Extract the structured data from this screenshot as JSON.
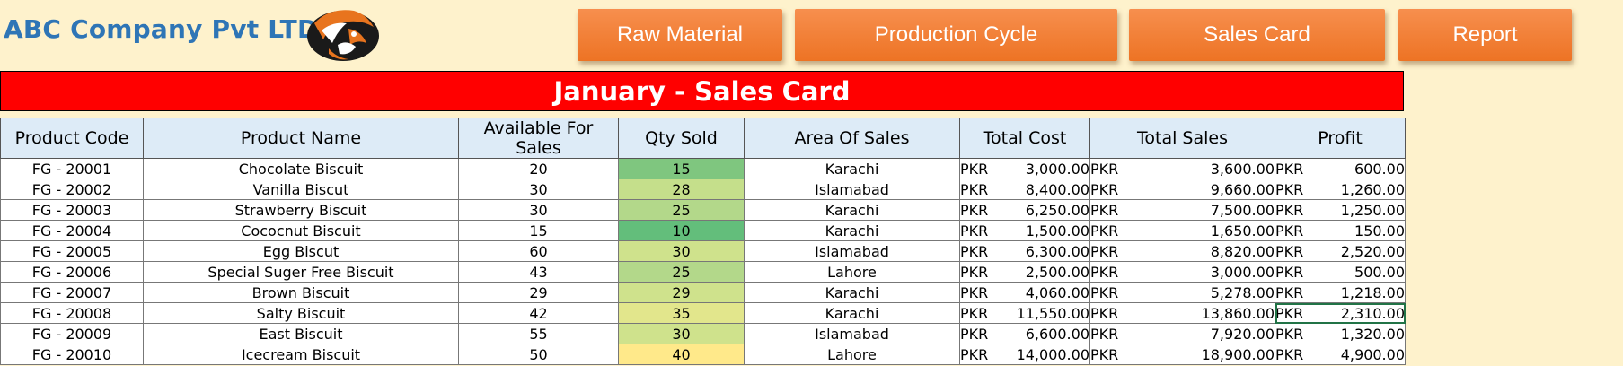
{
  "company": {
    "name": "ABC Company Pvt LTD"
  },
  "logo": {
    "icon": "tiger-head-icon"
  },
  "nav": [
    {
      "label": "Raw Material"
    },
    {
      "label": "Production Cycle"
    },
    {
      "label": "Sales Card"
    },
    {
      "label": "Report"
    }
  ],
  "sheet": {
    "title": "January - Sales Card",
    "columns": [
      "Product Code",
      "Product Name",
      "Available For Sales",
      "Qty Sold",
      "Area Of Sales",
      "Total Cost",
      "Total Sales",
      "Profit"
    ],
    "currency": "PKR",
    "rows": [
      {
        "code": "FG - 20001",
        "name": "Chocolate Biscuit",
        "available": "20",
        "qty": "15",
        "qty_color": "#7fc67f",
        "area": "Karachi",
        "cost": "3,000.00",
        "sales": "3,600.00",
        "profit": "600.00"
      },
      {
        "code": "FG - 20002",
        "name": "Vanilla Biscut",
        "available": "30",
        "qty": "28",
        "qty_color": "#c5df8b",
        "area": "Islamabad",
        "cost": "8,400.00",
        "sales": "9,660.00",
        "profit": "1,260.00"
      },
      {
        "code": "FG - 20003",
        "name": "Strawberry Biscuit",
        "available": "30",
        "qty": "25",
        "qty_color": "#b3d88a",
        "area": "Karachi",
        "cost": "6,250.00",
        "sales": "7,500.00",
        "profit": "1,250.00"
      },
      {
        "code": "FG - 20004",
        "name": "Cococnut Biscuit",
        "available": "15",
        "qty": "10",
        "qty_color": "#63be7b",
        "area": "Karachi",
        "cost": "1,500.00",
        "sales": "1,650.00",
        "profit": "150.00"
      },
      {
        "code": "FG - 20005",
        "name": "Egg Biscut",
        "available": "60",
        "qty": "30",
        "qty_color": "#cfe28c",
        "area": "Islamabad",
        "cost": "6,300.00",
        "sales": "8,820.00",
        "profit": "2,520.00"
      },
      {
        "code": "FG - 20006",
        "name": "Special Suger Free Biscuit",
        "available": "43",
        "qty": "25",
        "qty_color": "#b3d88a",
        "area": "Lahore",
        "cost": "2,500.00",
        "sales": "3,000.00",
        "profit": "500.00"
      },
      {
        "code": "FG - 20007",
        "name": "Brown Biscuit",
        "available": "29",
        "qty": "29",
        "qty_color": "#cfe28c",
        "area": "Karachi",
        "cost": "4,060.00",
        "sales": "5,278.00",
        "profit": "1,218.00"
      },
      {
        "code": "FG - 20008",
        "name": "Salty Biscuit",
        "available": "42",
        "qty": "35",
        "qty_color": "#e2e68c",
        "area": "Karachi",
        "cost": "11,550.00",
        "sales": "13,860.00",
        "profit": "2,310.00"
      },
      {
        "code": "FG - 20009",
        "name": "East Biscuit",
        "available": "55",
        "qty": "30",
        "qty_color": "#cfe28c",
        "area": "Islamabad",
        "cost": "6,600.00",
        "sales": "7,920.00",
        "profit": "1,320.00"
      },
      {
        "code": "FG - 20010",
        "name": "Icecream Biscuit",
        "available": "50",
        "qty": "40",
        "qty_color": "#ffe98a",
        "area": "Lahore",
        "cost": "14,000.00",
        "sales": "18,900.00",
        "profit": "4,900.00"
      }
    ],
    "selected_cell": {
      "row": 7,
      "column": "Profit"
    }
  }
}
